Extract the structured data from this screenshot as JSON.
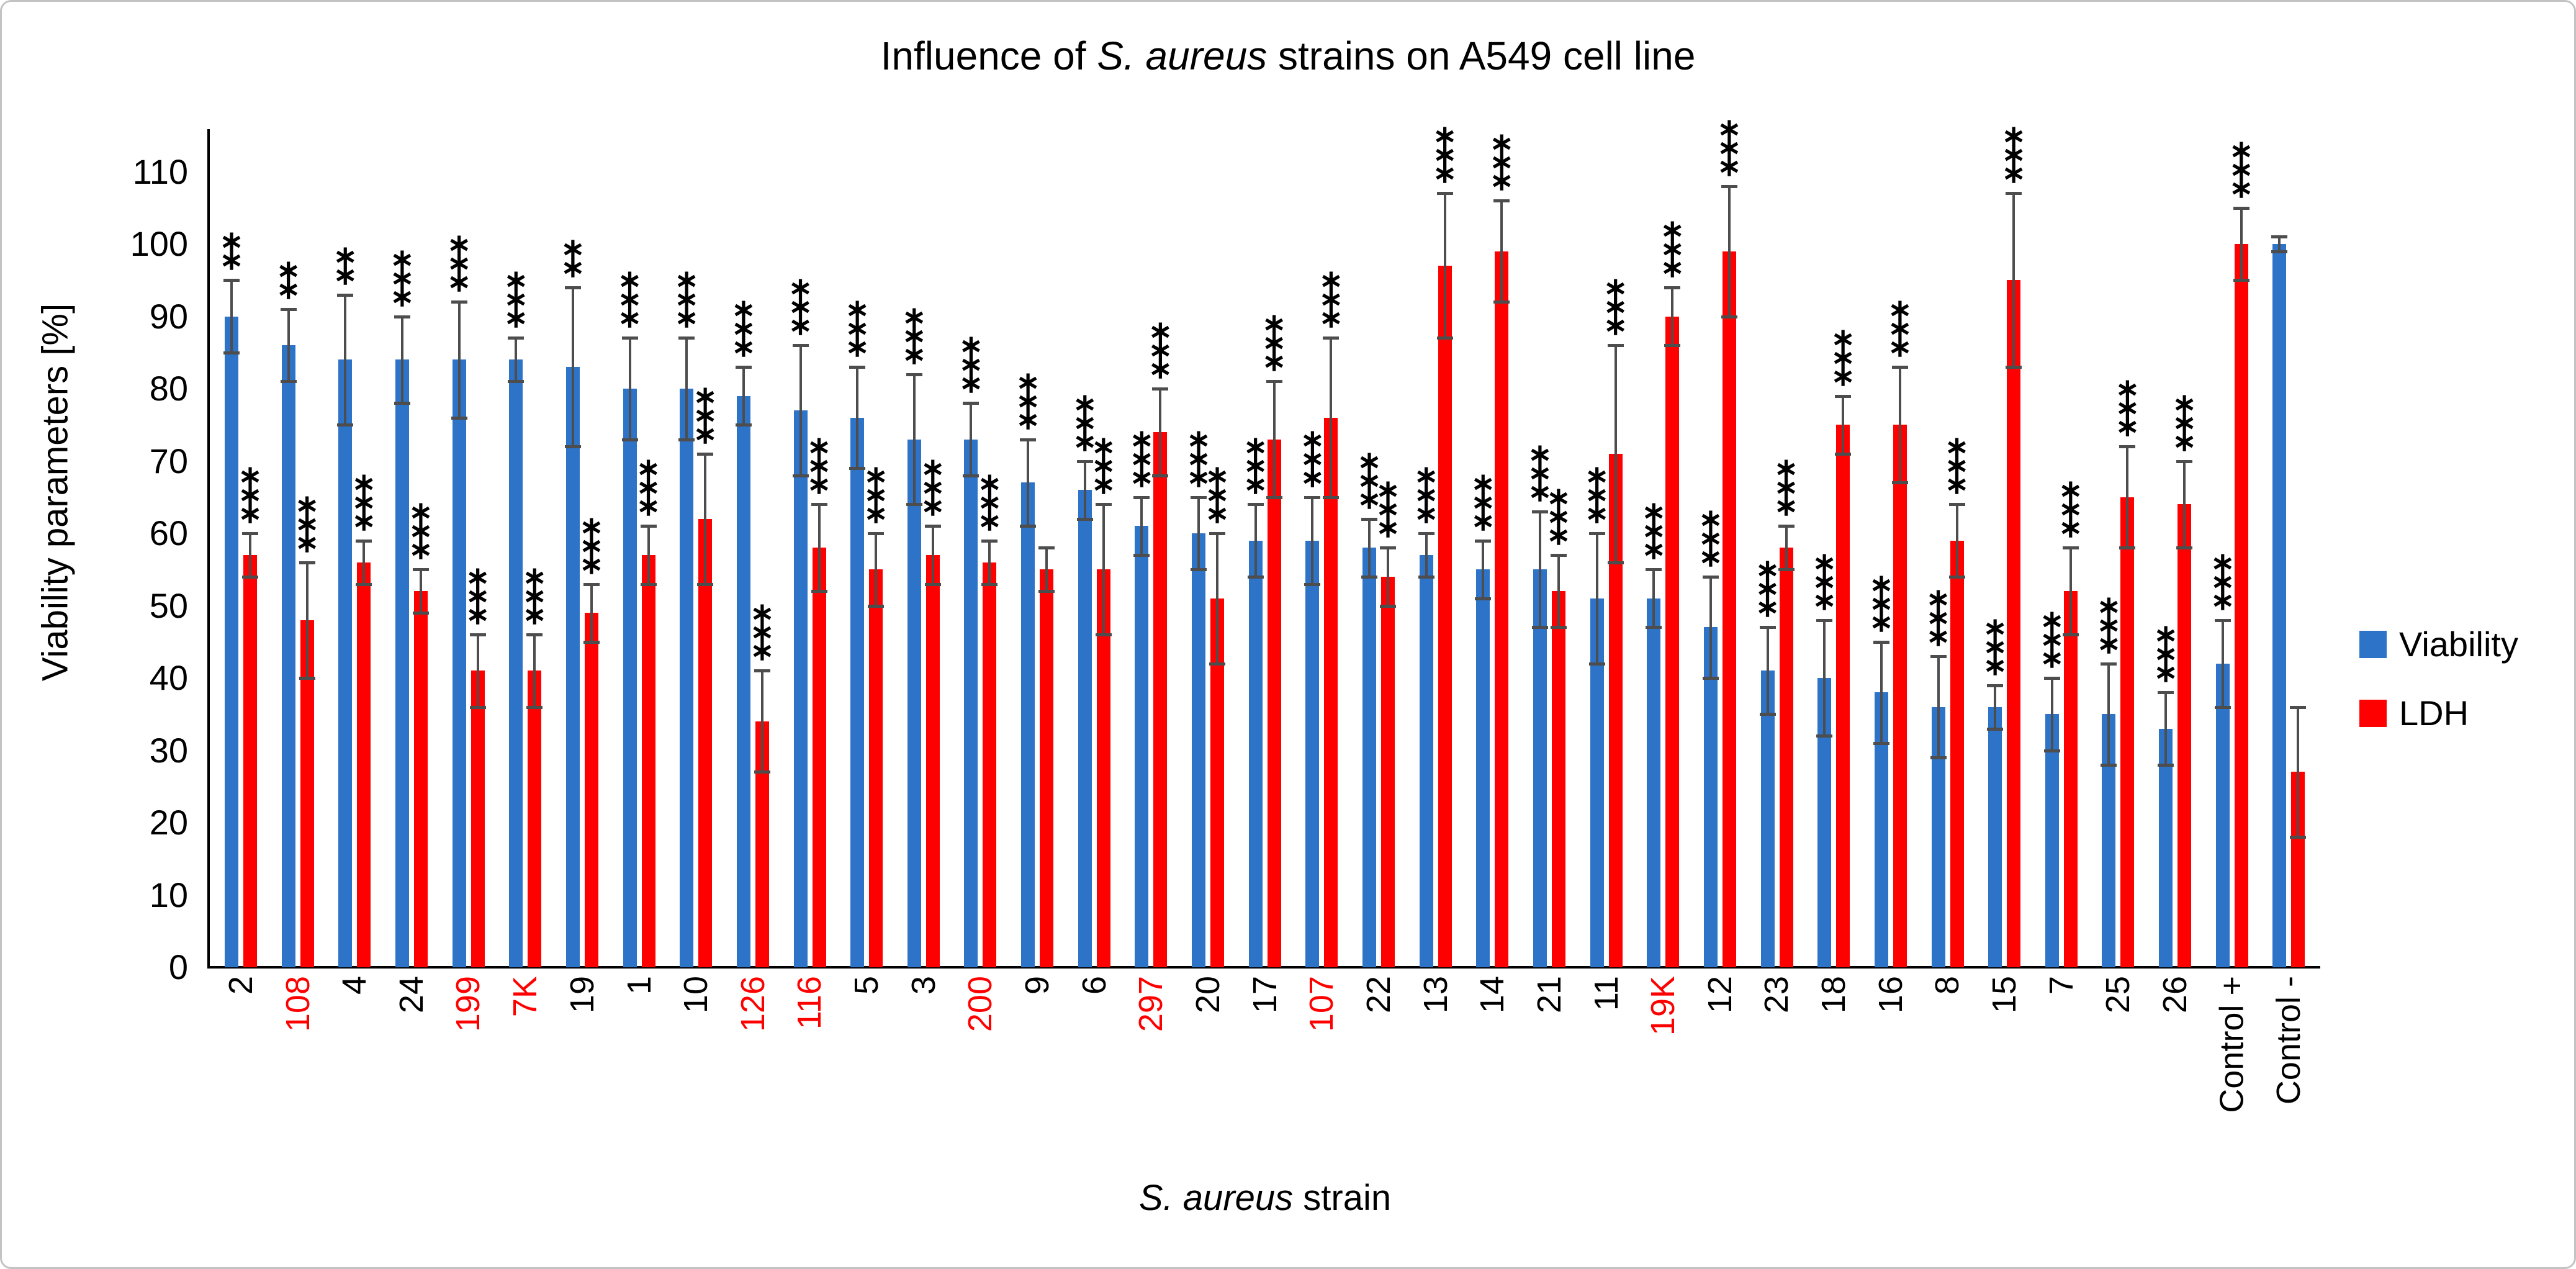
{
  "title": {
    "prefix": "Influence of ",
    "italic": "S. aureus",
    "suffix": " strains on A549 cell line"
  },
  "y_axis": {
    "title": "Viability parameters [%]"
  },
  "x_axis": {
    "title_italic": "S. aureus",
    "title_suffix": " strain"
  },
  "legend": [
    {
      "label": "Viability",
      "color": "#2d73c8"
    },
    {
      "label": "LDH",
      "color": "#ff0000"
    }
  ],
  "colors": {
    "viability_bar": "#2d73c8",
    "ldh_bar": "#ff0000",
    "error_bar": "#4d4d4d",
    "axis": "#000000",
    "highlight_label": "#ff0000",
    "normal_label": "#000000",
    "figure_border": "#c3c3c3"
  },
  "chart_data": {
    "type": "bar",
    "title": "Influence of S. aureus strains on A549 cell line",
    "xlabel": "S. aureus strain",
    "ylabel": "Viability parameters [%]",
    "ylim": [
      0,
      115
    ],
    "yticks": [
      0,
      10,
      20,
      30,
      40,
      50,
      60,
      70,
      80,
      90,
      100,
      110
    ],
    "grid": false,
    "legend_position": "right",
    "error_bars": true,
    "categories": [
      "2",
      "108",
      "4",
      "24",
      "199",
      "7K",
      "19",
      "1",
      "10",
      "126",
      "116",
      "5",
      "3",
      "200",
      "9",
      "6",
      "297",
      "20",
      "17",
      "107",
      "22",
      "13",
      "14",
      "21",
      "11",
      "19K",
      "12",
      "23",
      "18",
      "16",
      "8",
      "15",
      "7",
      "25",
      "26",
      "Control +",
      "Control -"
    ],
    "category_label_colors": [
      "black",
      "red",
      "black",
      "black",
      "red",
      "red",
      "black",
      "black",
      "black",
      "red",
      "red",
      "black",
      "black",
      "red",
      "black",
      "black",
      "red",
      "black",
      "black",
      "red",
      "black",
      "black",
      "black",
      "black",
      "black",
      "red",
      "black",
      "black",
      "black",
      "black",
      "black",
      "black",
      "black",
      "black",
      "black",
      "black",
      "black"
    ],
    "series": [
      {
        "name": "Viability",
        "color": "#2d73c8",
        "values": [
          90,
          86,
          84,
          84,
          84,
          84,
          83,
          80,
          80,
          79,
          77,
          76,
          73,
          73,
          67,
          66,
          61,
          60,
          59,
          59,
          58,
          57,
          55,
          55,
          51,
          51,
          47,
          41,
          40,
          38,
          36,
          36,
          35,
          35,
          33,
          42,
          100
        ],
        "errors": [
          5,
          5,
          9,
          6,
          8,
          3,
          11,
          7,
          7,
          4,
          9,
          7,
          9,
          5,
          6,
          4,
          4,
          5,
          5,
          6,
          4,
          3,
          4,
          8,
          9,
          4,
          7,
          6,
          8,
          7,
          7,
          3,
          5,
          7,
          5,
          6,
          1
        ],
        "significance": [
          "**",
          "**",
          "**",
          "***",
          "***",
          "***",
          "**",
          "***",
          "***",
          "***",
          "***",
          "***",
          "***",
          "***",
          "***",
          "***",
          "***",
          "***",
          "***",
          "***",
          "***",
          "***",
          "***",
          "***",
          "***",
          "***",
          "***",
          "***",
          "***",
          "***",
          "***",
          "***",
          "***",
          "***",
          "***",
          "***",
          ""
        ]
      },
      {
        "name": "LDH",
        "color": "#ff0000",
        "values": [
          57,
          48,
          56,
          52,
          41,
          41,
          49,
          57,
          62,
          34,
          58,
          55,
          57,
          56,
          55,
          55,
          74,
          51,
          73,
          76,
          54,
          97,
          99,
          52,
          71,
          90,
          99,
          58,
          75,
          75,
          59,
          95,
          52,
          65,
          64,
          100,
          27
        ],
        "errors": [
          3,
          8,
          3,
          3,
          5,
          5,
          4,
          4,
          9,
          7,
          6,
          5,
          4,
          3,
          3,
          9,
          6,
          9,
          8,
          11,
          4,
          10,
          7,
          5,
          15,
          4,
          9,
          3,
          4,
          8,
          5,
          12,
          6,
          7,
          6,
          5,
          9
        ],
        "significance": [
          "***",
          "***",
          "***",
          "***",
          "***",
          "***",
          "***",
          "***",
          "***",
          "***",
          "***",
          "***",
          "***",
          "***",
          "",
          "***",
          "***",
          "***",
          "***",
          "***",
          "***",
          "***",
          "***",
          "***",
          "***",
          "***",
          "***",
          "***",
          "***",
          "***",
          "***",
          "***",
          "***",
          "***",
          "***",
          "***",
          ""
        ]
      }
    ]
  }
}
